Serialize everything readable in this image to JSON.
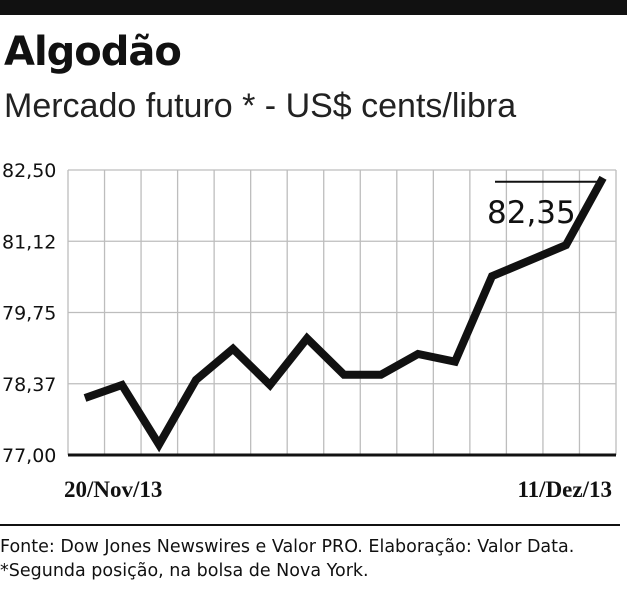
{
  "chart_data": {
    "type": "line",
    "title": "Algodão",
    "subtitle": "Mercado futuro * - US$ cents/libra",
    "x_labels": [
      "20/Nov/13",
      "11/Dez/13"
    ],
    "y_ticks": [
      "82,50",
      "81,12",
      "79,75",
      "78,37",
      "77,00"
    ],
    "ylim": [
      77.0,
      82.5
    ],
    "grid": true,
    "series": [
      {
        "values": [
          78.1,
          78.35,
          77.2,
          78.45,
          79.05,
          78.35,
          79.25,
          78.55,
          78.55,
          78.95,
          78.8,
          80.45,
          80.75,
          81.05,
          82.35
        ]
      }
    ],
    "annotation": {
      "label": "82,35",
      "value": 82.35
    },
    "color": "#111111"
  },
  "footer": {
    "source": "Fonte: Dow Jones Newswires e Valor PRO. Elaboração: Valor Data. *Segunda posição, na bolsa de Nova York."
  }
}
